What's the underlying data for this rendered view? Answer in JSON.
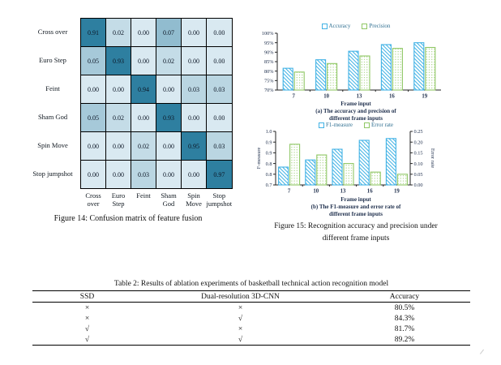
{
  "figure14": {
    "caption": "Figure 14: Confusion matrix of feature fusion",
    "row_labels": [
      "Cross over",
      "Euro Step",
      "Feint",
      "Sham God",
      "Spin Move",
      "Stop jumpshot"
    ],
    "col_labels": [
      "Cross over",
      "Euro Step",
      "Feint",
      "Sham God",
      "Spin Move",
      "Stop jumpshot"
    ],
    "matrix": [
      [
        0.91,
        0.02,
        0.0,
        0.07,
        0.0,
        0.0
      ],
      [
        0.05,
        0.93,
        0.0,
        0.02,
        0.0,
        0.0
      ],
      [
        0.0,
        0.0,
        0.94,
        0.0,
        0.03,
        0.03
      ],
      [
        0.05,
        0.02,
        0.0,
        0.93,
        0.0,
        0.0
      ],
      [
        0.0,
        0.0,
        0.02,
        0.0,
        0.95,
        0.03
      ],
      [
        0.0,
        0.0,
        0.03,
        0.0,
        0.0,
        0.97
      ]
    ],
    "colors": {
      "cell_low": "#d9e9f1",
      "cell_high": "#2e7fa0",
      "grid": "#000000"
    }
  },
  "figure15": {
    "caption": [
      "Figure 15: Recognition accuracy and precision under",
      "different frame inputs"
    ]
  },
  "chart_data": [
    {
      "type": "bar",
      "panel": "a",
      "title": "",
      "categories": [
        "7",
        "10",
        "13",
        "16",
        "19"
      ],
      "series": [
        {
          "name": "Accuracy",
          "values": [
            81.5,
            86,
            90.5,
            94,
            95
          ],
          "color": "#41b2e5",
          "hatch": "diagonal"
        },
        {
          "name": "Precision",
          "values": [
            79.5,
            84,
            88,
            92,
            92.5
          ],
          "color": "#8fc765",
          "dot_color": "#a3d27e",
          "hatch": "dots"
        }
      ],
      "xlabel": "Frame input",
      "caption": [
        "(a) The accuracy and precision of",
        "different frame inputs"
      ],
      "axes": {
        "left": {
          "lim": [
            70,
            100
          ],
          "ticks": [
            "100%",
            "95%",
            "90%",
            "85%",
            "80%",
            "75%",
            "70%"
          ]
        },
        "right": null
      },
      "grid": false,
      "legend_position": "top"
    },
    {
      "type": "bar",
      "panel": "b",
      "title": "",
      "categories": [
        "7",
        "10",
        "13",
        "16",
        "19"
      ],
      "series": [
        {
          "name": "F1-measure",
          "values": [
            0.8,
            0.84,
            0.9,
            0.95,
            0.96
          ],
          "color": "#41b2e5",
          "hatch": "diagonal",
          "axis": "left"
        },
        {
          "name": "Error rate",
          "values": [
            0.19,
            0.14,
            0.1,
            0.06,
            0.05
          ],
          "color": "#8fc765",
          "dot_color": "#a3d27e",
          "hatch": "dots",
          "axis": "right"
        }
      ],
      "xlabel": "Frame input",
      "ylabel_left": "F-measure",
      "ylabel_right": "Error rate",
      "caption": [
        "(b) The F1-measure and error rate of",
        "different frame inputs"
      ],
      "axes": {
        "left": {
          "lim": [
            0.7,
            1.0
          ],
          "ticks": [
            "1.0",
            "0.9",
            "0.9",
            "0.8",
            "0.8",
            "0.7"
          ]
        },
        "right": {
          "lim": [
            0,
            0.25
          ],
          "ticks": [
            "0.25",
            "0.20",
            "0.15",
            "0.10",
            "0.05",
            "0.00"
          ]
        }
      },
      "grid": false,
      "legend_position": "top"
    }
  ],
  "table2": {
    "caption": "Table 2: Results of ablation experiments of basketball technical action recognition model",
    "headers": [
      "SSD",
      "Dual-resolution 3D-CNN",
      "Accuracy"
    ],
    "rows": [
      [
        "×",
        "×",
        "80.5%"
      ],
      [
        "×",
        "√",
        "84.3%"
      ],
      [
        "√",
        "×",
        "81.7%"
      ],
      [
        "√",
        "√",
        "89.2%"
      ]
    ]
  }
}
